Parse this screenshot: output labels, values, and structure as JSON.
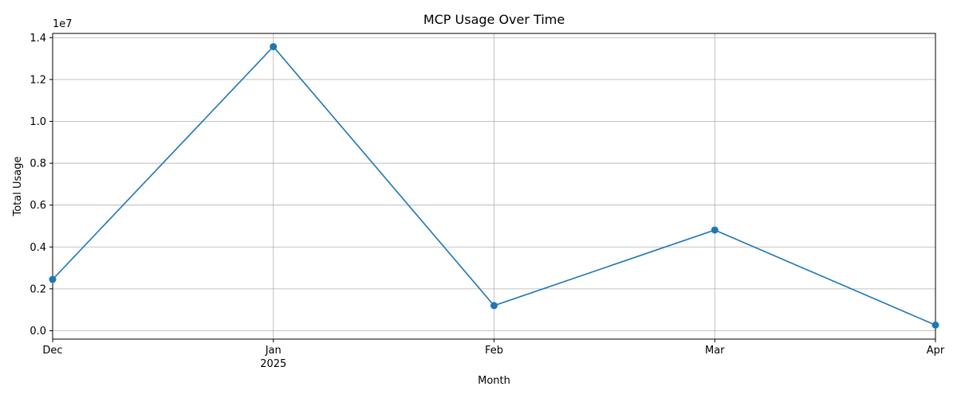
{
  "chart_data": {
    "type": "line",
    "title": "MCP Usage Over Time",
    "xlabel": "Month",
    "ylabel": "Total Usage",
    "y_offset_text": "1e7",
    "x": [
      "2024-12",
      "2025-01",
      "2025-02",
      "2025-03",
      "2025-04"
    ],
    "x_tick_labels": [
      "Dec",
      "Jan",
      "Feb",
      "Mar",
      "Apr"
    ],
    "x_year_label": "2025",
    "series": [
      {
        "values": [
          2450000,
          13570000,
          1200000,
          4810000,
          270000
        ],
        "color": "#1f77b4",
        "marker": "circle"
      }
    ],
    "ylim": [
      -400000,
      14200000
    ],
    "y_ticks": [
      0,
      2000000,
      4000000,
      6000000,
      8000000,
      10000000,
      12000000,
      14000000
    ],
    "y_tick_labels": [
      "0.0",
      "0.2",
      "0.4",
      "0.6",
      "0.8",
      "1.0",
      "1.2",
      "1.4"
    ],
    "grid": true
  }
}
